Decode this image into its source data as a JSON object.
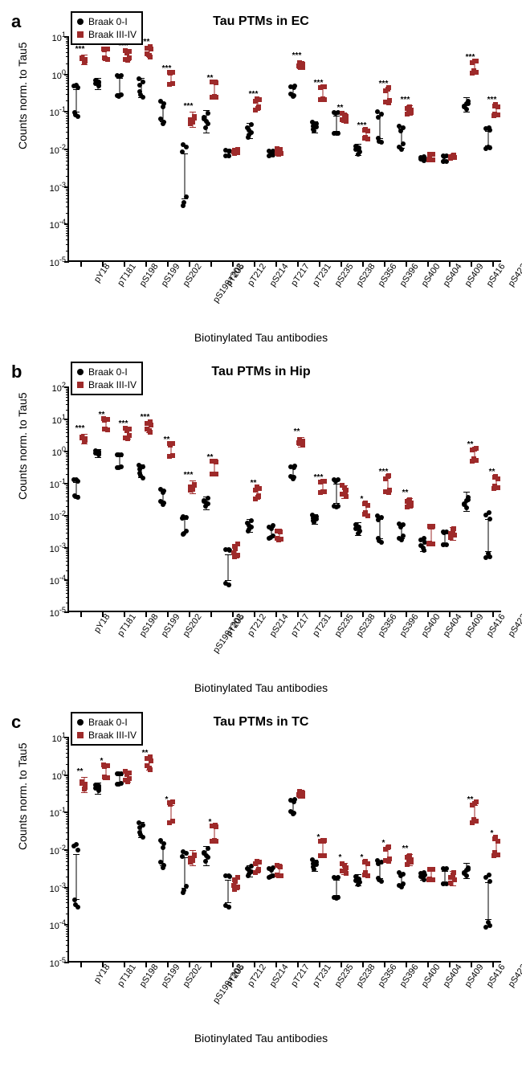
{
  "categories": [
    "pY18",
    "pT181",
    "pS198",
    "pS199",
    "pS202",
    "pS199+202",
    "pT205",
    "pT212",
    "pS214",
    "pT217",
    "pT231",
    "pS235",
    "pS238",
    "pS356",
    "pS396",
    "pS400",
    "pS404",
    "pS409",
    "pS416",
    "pS422"
  ],
  "ylabel": "Counts norm. to Tau5",
  "xlabel": "Biotinylated Tau antibodies",
  "legend": {
    "a": "Braak 0-I",
    "b": "Braak III-IV"
  },
  "colors": {
    "braak0": "#000000",
    "braak3": "#9e2a2a",
    "bg": "#ffffff"
  },
  "marker_size": 6,
  "font_sizes": {
    "panel_label": 22,
    "title": 16,
    "axis_label": 14,
    "tick": 11,
    "legend": 12,
    "sig": 10
  },
  "panels": [
    {
      "label": "a",
      "title": "Tau PTMs in EC",
      "ylim_exp": [
        -5,
        1
      ],
      "sig": [
        "***",
        "***",
        "***",
        "***",
        "***",
        "***",
        "**",
        "",
        "***",
        "",
        "***",
        "***",
        "**",
        "***",
        "***",
        "***",
        "",
        "",
        "***",
        "***"
      ],
      "series": [
        {
          "name": "Braak 0-I",
          "marker": "circle",
          "color": "#000000",
          "means": [
            -0.7,
            -0.25,
            -0.3,
            -0.35,
            -1.0,
            -2.7,
            -1.25,
            -2.1,
            -1.5,
            -2.1,
            -0.45,
            -1.4,
            -1.3,
            -2.0,
            -1.4,
            -1.7,
            -2.25,
            -2.25,
            -0.8,
            -1.7
          ],
          "sems": [
            0.3,
            0.15,
            0.2,
            0.25,
            0.25,
            0.6,
            0.3,
            0.05,
            0.2,
            0.05,
            0.1,
            0.15,
            0.2,
            0.15,
            0.3,
            0.25,
            0.05,
            0.05,
            0.2,
            0.2
          ]
        },
        {
          "name": "Braak III-IV",
          "marker": "square",
          "color": "#9e2a2a",
          "means": [
            0.4,
            0.55,
            0.5,
            0.6,
            -0.1,
            -1.2,
            -0.4,
            -2.05,
            -0.8,
            -2.05,
            0.25,
            -0.5,
            -1.15,
            -1.6,
            -0.55,
            -0.95,
            -2.2,
            -2.2,
            0.2,
            -0.95
          ],
          "sems": [
            0.12,
            0.1,
            0.12,
            0.12,
            0.12,
            0.2,
            0.15,
            0.05,
            0.12,
            0.05,
            0.1,
            0.12,
            0.12,
            0.1,
            0.15,
            0.12,
            0.05,
            0.05,
            0.12,
            0.12
          ]
        }
      ]
    },
    {
      "label": "b",
      "title": "Tau PTMs in Hip",
      "ylim_exp": [
        -5,
        2
      ],
      "sig": [
        "***",
        "**",
        "***",
        "***",
        "**",
        "***",
        "**",
        "",
        "**",
        "",
        "**",
        "***",
        "",
        "*",
        "***",
        "**",
        "",
        "",
        "**",
        "**"
      ],
      "series": [
        {
          "name": "Braak 0-I",
          "marker": "circle",
          "color": "#000000",
          "means": [
            -1.15,
            -0.05,
            -0.3,
            -0.6,
            -1.4,
            -2.3,
            -1.6,
            -3.6,
            -2.3,
            -2.5,
            -0.65,
            -2.1,
            -1.3,
            -2.4,
            -2.4,
            -2.5,
            -2.9,
            -2.7,
            -1.55,
            -2.6
          ],
          "sems": [
            0.2,
            0.12,
            0.15,
            0.2,
            0.2,
            0.2,
            0.2,
            0.4,
            0.2,
            0.15,
            0.15,
            0.15,
            0.3,
            0.2,
            0.3,
            0.2,
            0.2,
            0.15,
            0.3,
            0.5
          ]
        },
        {
          "name": "Braak III-IV",
          "marker": "square",
          "color": "#9e2a2a",
          "means": [
            0.4,
            0.85,
            0.55,
            0.75,
            0.05,
            -1.1,
            -0.5,
            -3.1,
            -1.3,
            -2.6,
            0.3,
            -1.1,
            -1.25,
            -1.8,
            -1.0,
            -1.6,
            -2.6,
            -2.55,
            -0.1,
            -0.95
          ],
          "sems": [
            0.15,
            0.12,
            0.15,
            0.15,
            0.15,
            0.2,
            0.15,
            0.2,
            0.15,
            0.1,
            0.15,
            0.12,
            0.2,
            0.15,
            0.2,
            0.15,
            0.2,
            0.2,
            0.15,
            0.15
          ]
        }
      ]
    },
    {
      "label": "c",
      "title": "Tau PTMs in TC",
      "ylim_exp": [
        -5,
        1
      ],
      "sig": [
        "**",
        "*",
        "",
        "**",
        "*",
        "",
        "*",
        "",
        "",
        "",
        "",
        "*",
        "*",
        "*",
        "*",
        "**",
        "",
        "",
        "**",
        "*"
      ],
      "series": [
        {
          "name": "Braak 0-I",
          "marker": "circle",
          "color": "#000000",
          "means": [
            -2.7,
            -0.35,
            -0.1,
            -1.45,
            -2.1,
            -2.6,
            -2.15,
            -3.1,
            -2.55,
            -2.6,
            -0.85,
            -2.4,
            -3.0,
            -2.8,
            -2.55,
            -2.8,
            -2.7,
            -2.7,
            -2.55,
            -3.35
          ],
          "sems": [
            0.6,
            0.15,
            0.1,
            0.2,
            0.3,
            0.4,
            0.25,
            0.3,
            0.15,
            0.1,
            0.15,
            0.15,
            0.2,
            0.15,
            0.2,
            0.15,
            0.1,
            0.15,
            0.2,
            0.5
          ]
        },
        {
          "name": "Braak III-IV",
          "marker": "square",
          "color": "#9e2a2a",
          "means": [
            -0.25,
            0.1,
            -0.05,
            0.3,
            -1.0,
            -2.2,
            -1.55,
            -2.9,
            -2.45,
            -2.55,
            -0.5,
            -1.95,
            -2.5,
            -2.5,
            -2.1,
            -2.25,
            -2.65,
            -2.75,
            -1.0,
            -1.9
          ],
          "sems": [
            0.2,
            0.12,
            0.12,
            0.15,
            0.2,
            0.2,
            0.15,
            0.15,
            0.12,
            0.1,
            0.1,
            0.15,
            0.15,
            0.15,
            0.15,
            0.15,
            0.1,
            0.2,
            0.2,
            0.2
          ]
        }
      ]
    }
  ]
}
